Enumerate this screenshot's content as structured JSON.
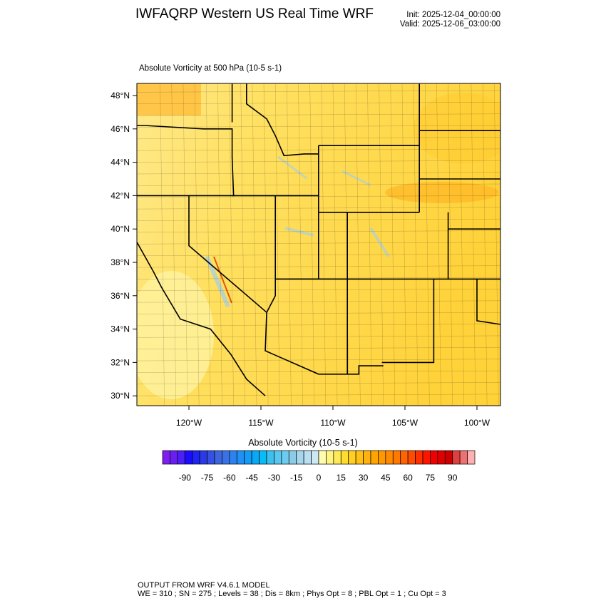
{
  "header": {
    "title": "IWFAQRP Western US Real Time WRF",
    "init": "Init: 2025-12-04_00:00:00",
    "valid": "Valid: 2025-12-06_03:00:00"
  },
  "map": {
    "subtitle": "Absolute Vorticity at 500 hPa   (10-5 s-1)",
    "lat_labels": [
      "48°N",
      "46°N",
      "44°N",
      "42°N",
      "40°N",
      "38°N",
      "36°N",
      "34°N",
      "32°N",
      "30°N"
    ],
    "lat_values": [
      48,
      46,
      44,
      42,
      40,
      38,
      36,
      34,
      32,
      30
    ],
    "lon_labels": [
      "120°W",
      "115°W",
      "110°W",
      "105°W",
      "100°W"
    ],
    "lon_values": [
      -120,
      -115,
      -110,
      -105,
      -100
    ],
    "lat_range": [
      29.3,
      48.7
    ],
    "lon_range": [
      -123.6,
      -98.4
    ],
    "dominant_field_color": "#ffd83a"
  },
  "colorbar": {
    "title": "Absolute Vorticity  (10-5 s-1)",
    "levels_min": -100,
    "levels_max": 100,
    "levels_step": 5,
    "labels": [
      "-90",
      "-75",
      "-60",
      "-45",
      "-30",
      "-15",
      "0",
      "15",
      "30",
      "45",
      "60",
      "75",
      "90"
    ],
    "label_values": [
      -90,
      -75,
      -60,
      -45,
      -30,
      -15,
      0,
      15,
      30,
      45,
      60,
      75,
      90
    ],
    "colors": [
      "#7f1fef",
      "#6a1ff0",
      "#4b1ff5",
      "#1a0cff",
      "#1f24f5",
      "#2a3ae6",
      "#3550e2",
      "#3d66dd",
      "#3a72e6",
      "#2d82f0",
      "#1f90f5",
      "#129cf7",
      "#0aa8f5",
      "#08bcf8",
      "#3cc0f0",
      "#58c8f0",
      "#6ccbee",
      "#8ccbe8",
      "#a5d6ee",
      "#b8e0f0",
      "#cce8f2",
      "#fffcb0",
      "#fff480",
      "#ffe95a",
      "#ffdd2e",
      "#ffd020",
      "#ffc214",
      "#ffb30c",
      "#ffa500",
      "#ff9800",
      "#ff8a00",
      "#ff7800",
      "#ff6400",
      "#ff4c00",
      "#ff3000",
      "#ff1400",
      "#f00000",
      "#e00000",
      "#cc0000",
      "#dd4040",
      "#ee7070",
      "#ffb0b0"
    ]
  },
  "footer": {
    "line1": "OUTPUT FROM WRF V4.6.1 MODEL",
    "line2": "WE = 310 ; SN = 275 ; Levels = 38 ; Dis = 8km ; Phys Opt = 8 ; PBL Opt = 1 ; Cu Opt = 3"
  }
}
